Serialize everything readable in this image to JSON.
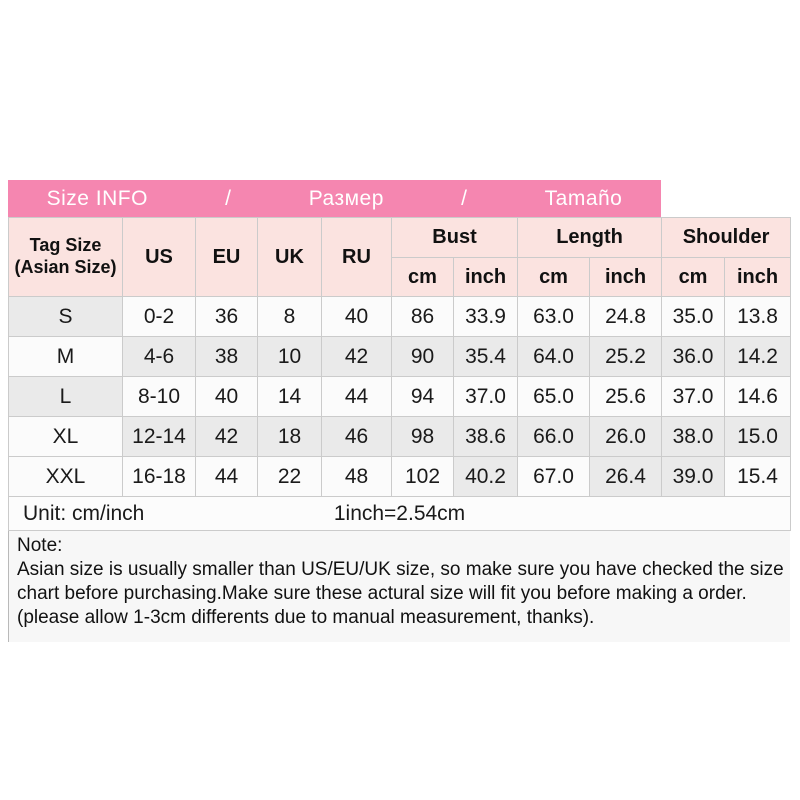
{
  "title_bar": {
    "items": [
      "Size INFO",
      "/",
      "Размер",
      "/",
      "Tamaño"
    ]
  },
  "table": {
    "tag_header_line1": "Tag Size",
    "tag_header_line2": "(Asian Size)",
    "size_system_headers": [
      "US",
      "EU",
      "UK",
      "RU"
    ],
    "measure_headers": [
      "Bust",
      "Length",
      "Shoulder"
    ],
    "unit_subheaders": [
      "cm",
      "inch",
      "cm",
      "inch",
      "cm",
      "inch"
    ],
    "rows": [
      [
        "S",
        "0-2",
        "36",
        "8",
        "40",
        "86",
        "33.9",
        "63.0",
        "24.8",
        "35.0",
        "13.8"
      ],
      [
        "M",
        "4-6",
        "38",
        "10",
        "42",
        "90",
        "35.4",
        "64.0",
        "25.2",
        "36.0",
        "14.2"
      ],
      [
        "L",
        "8-10",
        "40",
        "14",
        "44",
        "94",
        "37.0",
        "65.0",
        "25.6",
        "37.0",
        "14.6"
      ],
      [
        "XL",
        "12-14",
        "42",
        "18",
        "46",
        "98",
        "38.6",
        "66.0",
        "26.0",
        "38.0",
        "15.0"
      ],
      [
        "XXL",
        "16-18",
        "44",
        "22",
        "48",
        "102",
        "40.2",
        "67.0",
        "26.4",
        "39.0",
        "15.4"
      ]
    ]
  },
  "footer": {
    "unit_label": "Unit: cm/inch",
    "conversion": "1inch=2.54cm"
  },
  "note": {
    "heading": "Note:",
    "body": "Asian size is usually smaller than US/EU/UK size, so make sure you have checked the size chart before purchasing.Make sure these actural size will fit you before making a order.(please allow 1-3cm differents due to manual measurement, thanks)."
  },
  "colors": {
    "title_bar_bg": "#f586b0",
    "header_bg": "#fbe3e0",
    "shaded_cell": "#eaeaea",
    "cell_bg": "#fbfbfb"
  }
}
